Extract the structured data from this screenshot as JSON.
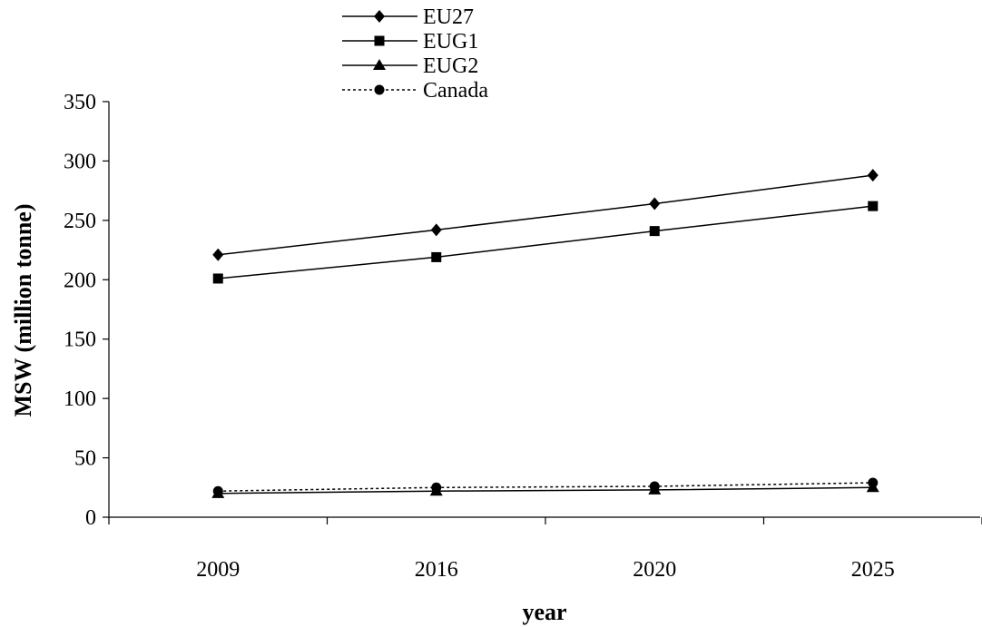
{
  "chart_data": {
    "type": "line",
    "title": "",
    "xlabel": "year",
    "ylabel": "MSW (million tonne)",
    "categories": [
      "2009",
      "2016",
      "2020",
      "2025"
    ],
    "ylim": [
      0,
      350
    ],
    "yticks": [
      0,
      50,
      100,
      150,
      200,
      250,
      300,
      350
    ],
    "grid": false,
    "legend_position": "top-left",
    "series": [
      {
        "name": "EU27",
        "values": [
          221,
          242,
          264,
          288
        ],
        "marker": "diamond",
        "line": "solid",
        "color": "#000000"
      },
      {
        "name": "EUG1",
        "values": [
          201,
          219,
          241,
          262
        ],
        "marker": "square",
        "line": "solid",
        "color": "#000000"
      },
      {
        "name": "EUG2",
        "values": [
          20,
          22,
          23,
          25
        ],
        "marker": "triangle",
        "line": "solid",
        "color": "#000000"
      },
      {
        "name": "Canada",
        "values": [
          22,
          25,
          26,
          29
        ],
        "marker": "circle",
        "line": "dotted",
        "color": "#000000"
      }
    ]
  }
}
